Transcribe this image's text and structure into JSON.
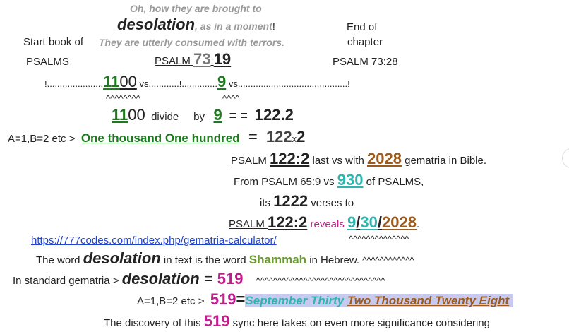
{
  "lines": [
    [
      "Oh, how they are brought to"
    ],
    [
      "desolation",
      ", as in a moment",
      "!"
    ],
    [
      "They are utterly consumed with terrors."
    ],
    [
      "Start book of"
    ],
    [
      "PSALMS"
    ],
    [
      "End of"
    ],
    [
      "chapter"
    ],
    [
      "PSALM 73:28"
    ],
    [
      "PSALM ",
      "73",
      ":",
      "19"
    ],
    [
      "!......................",
      "11",
      "00",
      " vs............!..............",
      "9",
      " vs...........................................!"
    ],
    [
      "^^^^^^^^"
    ],
    [
      "^^^^"
    ],
    [
      "11",
      "00",
      "  divide   ",
      "  by   ",
      "9",
      "  = =  ",
      "122.2"
    ],
    [
      "A=1,B=2 etc >  ",
      "One thousand One hundred",
      "  =  ",
      "122",
      "x",
      "2"
    ],
    [
      "PSALM ",
      "122:2",
      " last vs with ",
      "2028",
      " gematria in Bible."
    ],
    [
      "From ",
      "PSALM 65:9",
      " vs ",
      "930",
      " of ",
      "PSALMS",
      ","
    ],
    [
      "its ",
      "1222",
      " verses to"
    ],
    [
      "PSALM ",
      "122:2",
      " reveals ",
      "9",
      "/",
      "30",
      "/",
      "2028",
      "."
    ],
    [
      "^^^^^^^^^^^^^^"
    ],
    [
      "https://777codes.com/index.php/gematria-calculator/"
    ],
    [
      "The word ",
      "desolation",
      " in text is the word ",
      "Shammah",
      " in Hebrew. ",
      "^^^^^^^^^^^^"
    ],
    [
      "In standard gematria > ",
      "desolation",
      " = ",
      "519",
      "^^^^^^^^^^^^^^^^^^^^^^^^^^^^^^"
    ],
    [
      "A=1,B=2 etc >  ",
      "519",
      "=",
      "September Thirty",
      " ",
      "Two Thousand Twenty Eight"
    ],
    [
      "The discovery of this ",
      "519",
      " sync here takes on even more significance considering"
    ]
  ]
}
